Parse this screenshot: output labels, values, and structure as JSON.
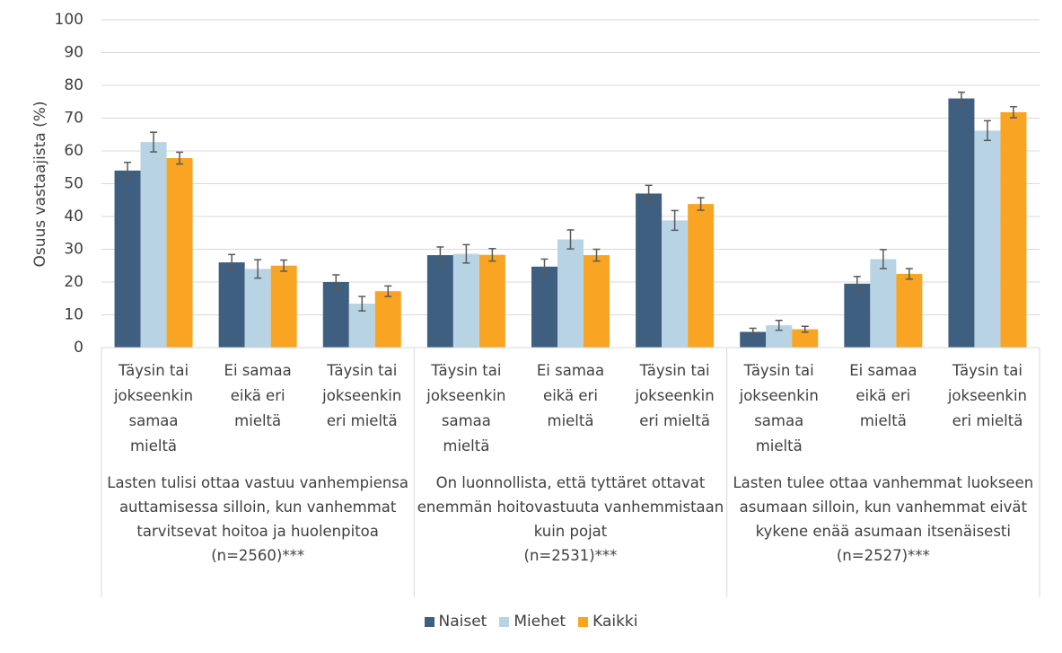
{
  "chart_data": {
    "type": "bar",
    "y_label": "Osuus vastaajista (%)",
    "categories": [
      "Täysin tai jokseenkin samaa mieltä",
      "Ei samaa eikä eri mieltä",
      "Täysin tai jokseenkin eri mieltä",
      "Täysin tai jokseenkin samaa mieltä",
      "Ei samaa eikä eri mieltä",
      "Täysin tai jokseenkin eri mieltä",
      "Täysin tai jokseenkin samaa mieltä",
      "Ei samaa eikä eri mieltä",
      "Täysin tai jokseenkin eri mieltä"
    ],
    "groups": [
      {
        "label": "Lasten tulisi ottaa vastuu vanhempiensa auttamisessa silloin, kun vanhemmat tarvitsevat hoitoa ja huolenpitoa\n(n=2560)***"
      },
      {
        "label": "On luonnollista, että tyttäret ottavat enemmän hoitovastuuta vanhemmistaan\nkuin pojat\n(n=2531)***"
      },
      {
        "label": "Lasten tulee ottaa vanhemmat luokseen asumaan silloin, kun vanhemmat eivät kykene enää asumaan itsenäisesti\n(n=2527)***"
      }
    ],
    "series": [
      {
        "name": "Naiset",
        "color": "#3f5f80",
        "values": [
          54,
          26,
          20,
          28.2,
          24.7,
          47,
          4.8,
          19.5,
          76
        ],
        "errors": [
          2.5,
          2.4,
          2.2,
          2.5,
          2.3,
          2.5,
          1.1,
          2.2,
          1.9
        ]
      },
      {
        "name": "Miehet",
        "color": "#b8d3e3",
        "values": [
          62.7,
          24,
          13.4,
          28.6,
          33,
          38.8,
          6.8,
          27,
          66.2
        ],
        "errors": [
          3,
          2.8,
          2.2,
          2.8,
          2.9,
          3,
          1.5,
          2.9,
          3
        ]
      },
      {
        "name": "Kaikki",
        "color": "#f9a523",
        "values": [
          57.8,
          25,
          17.2,
          28.3,
          28.2,
          43.8,
          5.6,
          22.5,
          71.8
        ],
        "errors": [
          1.8,
          1.7,
          1.6,
          1.9,
          1.8,
          1.9,
          0.9,
          1.6,
          1.7
        ]
      }
    ],
    "ylim": [
      0,
      100
    ],
    "yticks": [
      0,
      10,
      20,
      30,
      40,
      50,
      60,
      70,
      80,
      90,
      100
    ],
    "grid": true,
    "legend": "bottom"
  }
}
